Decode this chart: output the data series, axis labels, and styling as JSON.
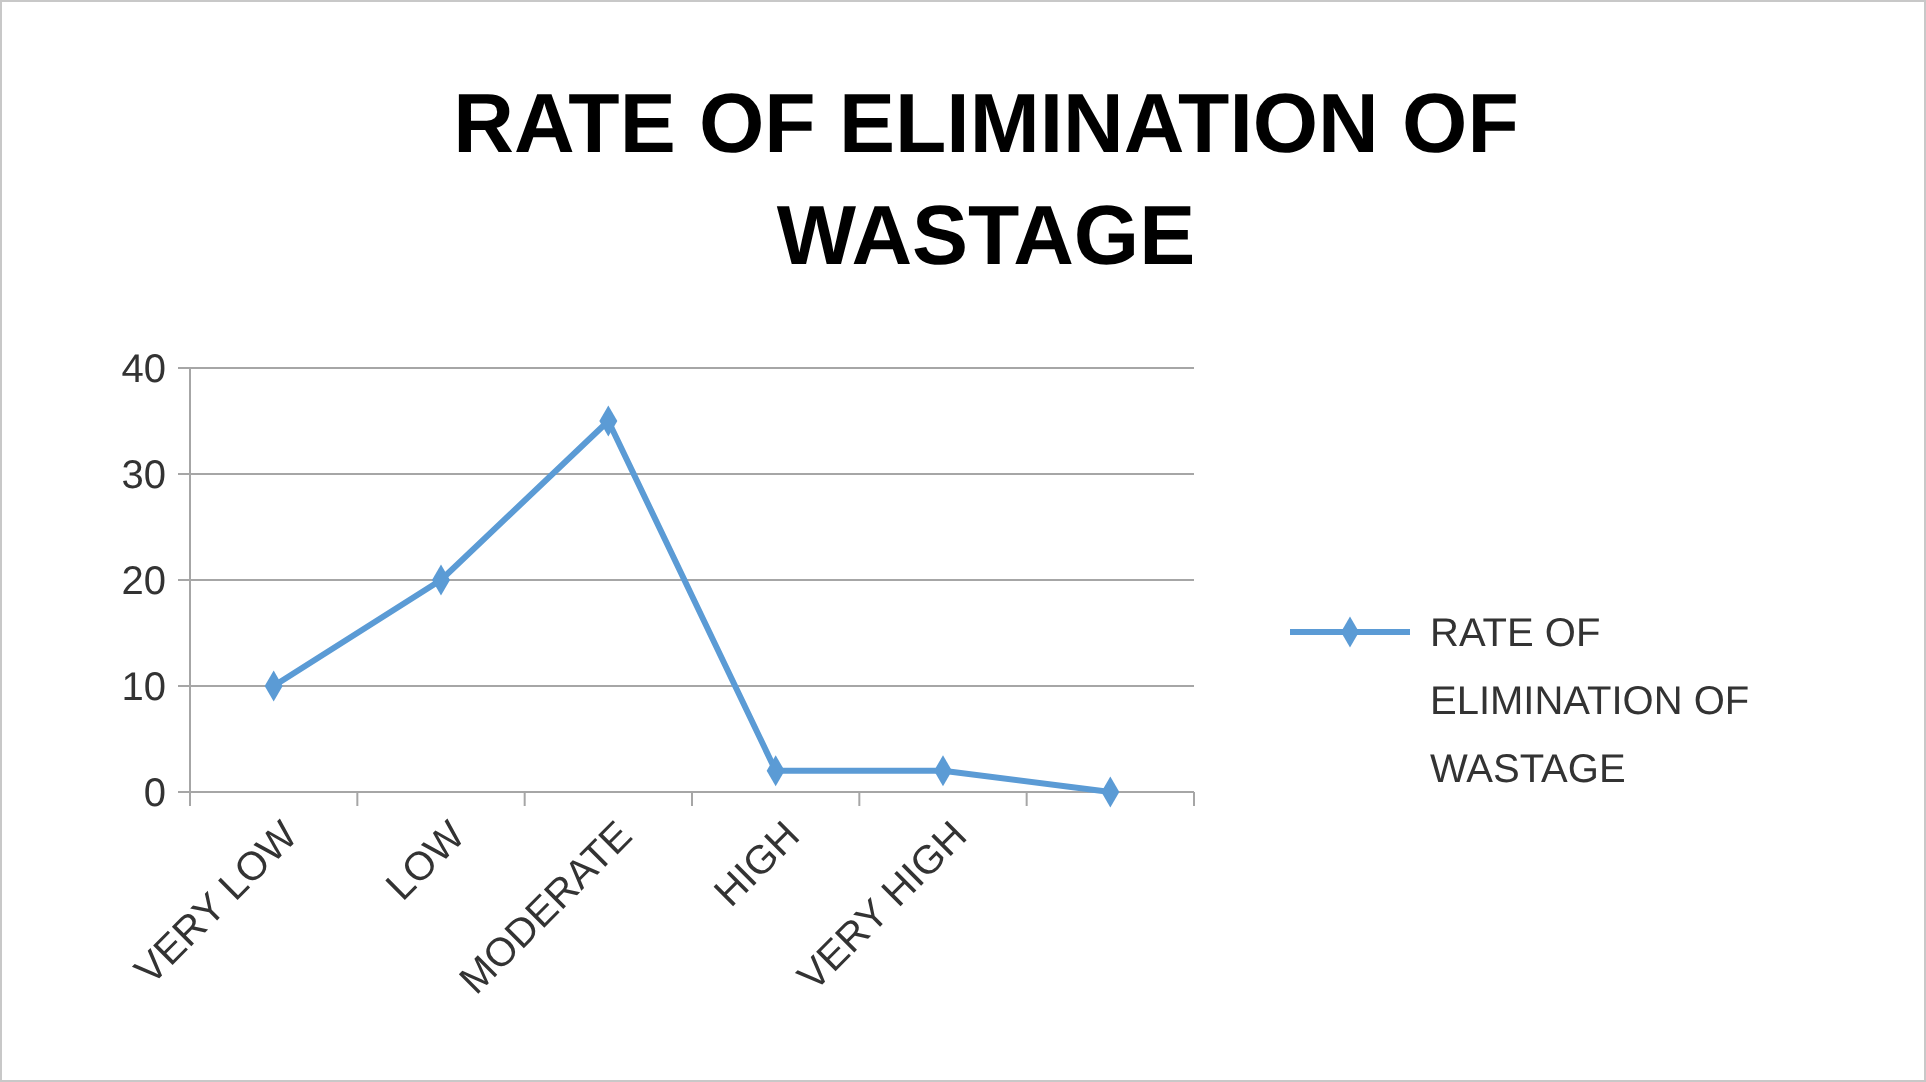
{
  "chart_data": {
    "type": "line",
    "title": "RATE OF ELIMINATION OF WASTAGE",
    "categories": [
      "VERY LOW",
      "LOW",
      "MODERATE",
      "HIGH",
      "VERY HIGH",
      null
    ],
    "series": [
      {
        "name": "RATE OF ELIMINATION OF WASTAGE",
        "color": "#5b9bd5",
        "values": [
          10,
          20,
          35,
          2,
          2,
          0
        ]
      }
    ],
    "ylim": [
      0,
      40
    ],
    "yticks": [
      0,
      10,
      20,
      30,
      40
    ],
    "grid": "y",
    "legend": "right",
    "marker": "diamond",
    "line_style": "solid"
  }
}
